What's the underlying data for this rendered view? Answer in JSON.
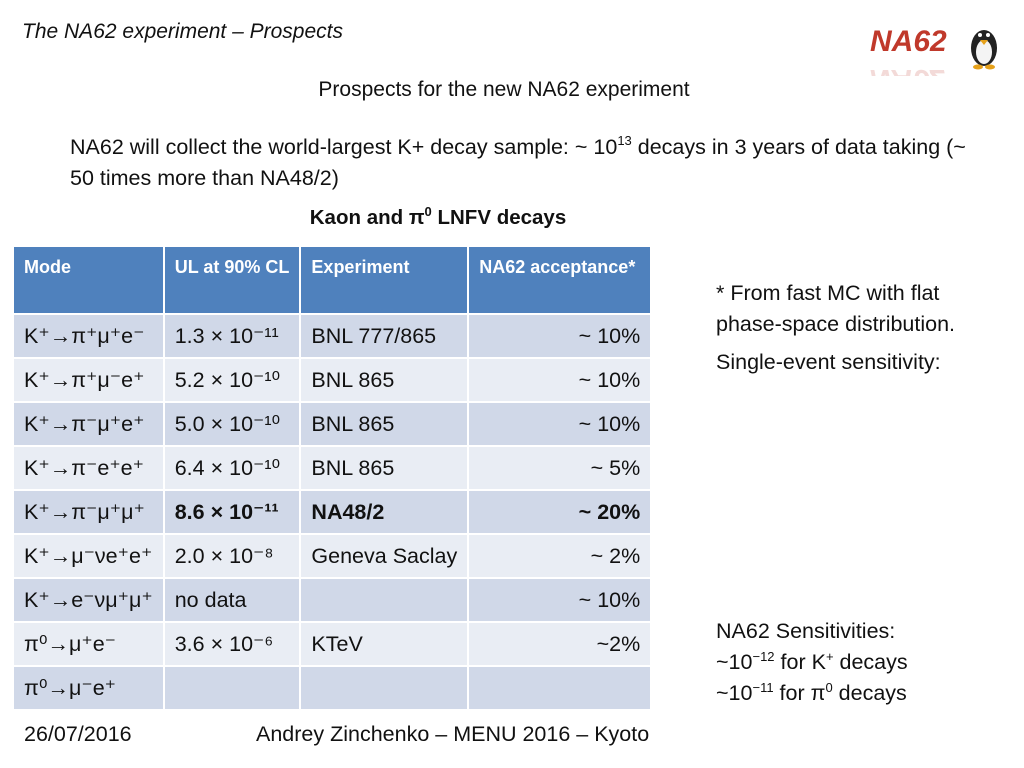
{
  "header": {
    "title": "The NA62 experiment – Prospects",
    "logo_text": "NA62",
    "subtitle": "Prospects for the new NA62 experiment"
  },
  "intro": {
    "text_before": "NA62 will collect the world-largest K+ decay sample: ~ 10",
    "exponent": "13",
    "text_after": " decays in 3 years of data taking (~ 50 times more than NA48/2)"
  },
  "table": {
    "caption_before": "Kaon and π",
    "caption_sup": "0",
    "caption_after": " LNFV decays",
    "headers": [
      "Mode",
      "UL at 90% CL",
      "Experiment",
      "NA62 acceptance*"
    ],
    "rows": [
      {
        "mode": "K⁺→π⁺μ⁺e⁻",
        "ul": "1.3 × 10⁻¹¹",
        "experiment": "BNL 777/865",
        "acceptance": "~ 10%"
      },
      {
        "mode": "K⁺→π⁺μ⁻e⁺",
        "ul": "5.2 × 10⁻¹⁰",
        "experiment": "BNL 865",
        "acceptance": "~ 10%"
      },
      {
        "mode": "K⁺→π⁻μ⁺e⁺",
        "ul": "5.0 × 10⁻¹⁰",
        "experiment": "BNL 865",
        "acceptance": "~ 10%"
      },
      {
        "mode": "K⁺→π⁻e⁺e⁺",
        "ul": "6.4 × 10⁻¹⁰",
        "experiment": "BNL 865",
        "acceptance": "~ 5%"
      },
      {
        "mode": "K⁺→π⁻μ⁺μ⁺",
        "ul": "8.6 × 10⁻¹¹",
        "experiment": "NA48/2",
        "acceptance": "~ 20%"
      },
      {
        "mode": "K⁺→μ⁻νe⁺e⁺",
        "ul": "2.0 × 10⁻⁸",
        "experiment": "Geneva Saclay",
        "acceptance": "~ 2%"
      },
      {
        "mode": "K⁺→e⁻νμ⁺μ⁺",
        "ul": "no data",
        "experiment": "",
        "acceptance": "~ 10%"
      },
      {
        "mode": "π⁰→μ⁺e⁻",
        "ul": "3.6 × 10⁻⁶",
        "experiment": "KTeV",
        "acceptance": "~2%"
      },
      {
        "mode": "π⁰→μ⁻e⁺",
        "ul": "",
        "experiment": "",
        "acceptance": ""
      }
    ]
  },
  "side": {
    "note": "* From fast MC with flat phase-space distribution.",
    "ses_label": "Single-event sensitivity:",
    "sens_title": "NA62 Sensitivities:",
    "sens_k_value": "~10",
    "sens_k_exp": "−12",
    "sens_k_text": " for K",
    "sens_k_sup": "+",
    "sens_k_tail": " decays",
    "sens_pi_value": "~10",
    "sens_pi_exp": "−11",
    "sens_pi_text": " for π",
    "sens_pi_sup": "0",
    "sens_pi_tail": " decays"
  },
  "footer": {
    "date": "26/07/2016",
    "author": "Andrey Zinchenko – MENU 2016 – Kyoto"
  },
  "colors": {
    "header_fill": "#4f81bd",
    "row_odd": "#d0d8e8",
    "row_even": "#e9edf4",
    "logo_red": "#c0392b"
  }
}
